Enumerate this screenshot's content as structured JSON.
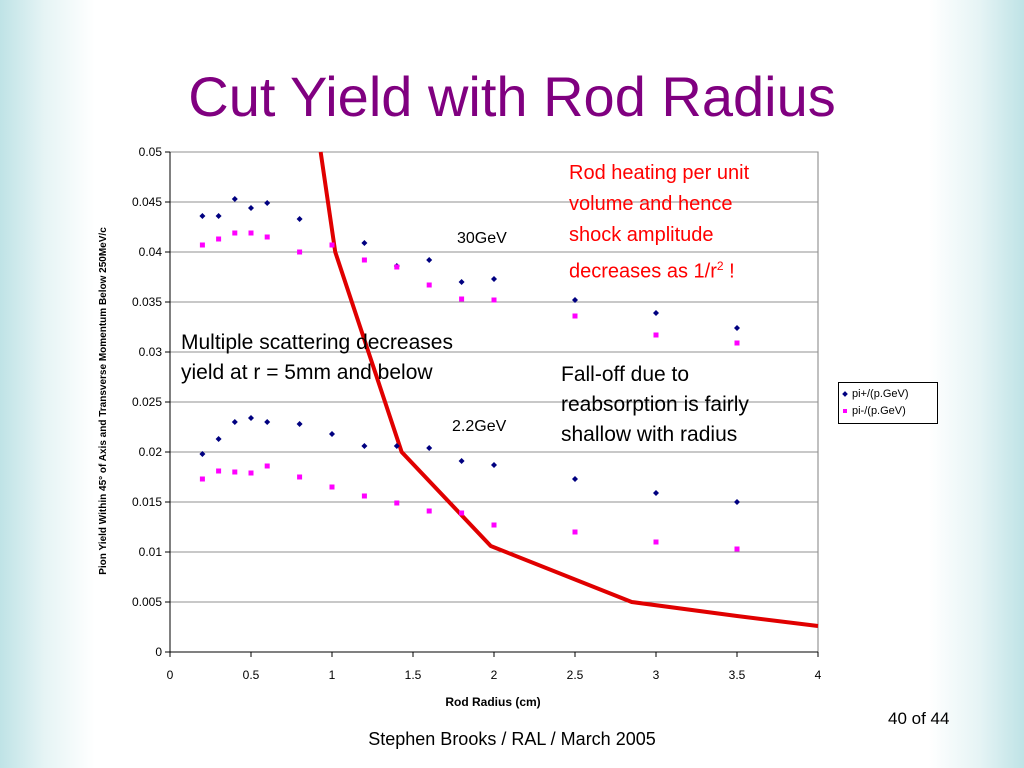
{
  "slide": {
    "title": "Cut Yield with Rod Radius",
    "footer": "Stephen Brooks / RAL / March 2005",
    "page": "40 of 44"
  },
  "annotations": {
    "multiple_scattering": [
      "Multiple scattering decreases",
      "yield at r = 5mm and below"
    ],
    "rod_heating": [
      "Rod heating per unit",
      "volume and hence",
      "shock amplitude",
      "decreases as 1/r"
    ],
    "rod_heating_sup": "2",
    "rod_heating_end": " !",
    "fall_off": [
      "Fall-off due to",
      "reabsorption is fairly",
      "shallow with radius"
    ],
    "label_30gev": "30GeV",
    "label_22gev": "2.2GeV"
  },
  "chart_data": {
    "type": "scatter",
    "xlabel": "Rod Radius (cm)",
    "ylabel": "Pion Yield Within 45° of Axis and Transverse Momentum Below 250MeV/c",
    "xlim": [
      0,
      4
    ],
    "ylim": [
      0,
      0.05
    ],
    "xticks": [
      "0",
      "0.5",
      "1",
      "1.5",
      "2",
      "2.5",
      "3",
      "3.5",
      "4"
    ],
    "yticks": [
      "0",
      "0.005",
      "0.01",
      "0.015",
      "0.02",
      "0.025",
      "0.03",
      "0.035",
      "0.04",
      "0.045",
      "0.05"
    ],
    "legend_position": "right",
    "series": [
      {
        "name": "pi+/(p.GeV)",
        "color": "#000080",
        "marker": "diamond",
        "points": [
          [
            0.2,
            0.0436
          ],
          [
            0.3,
            0.0436
          ],
          [
            0.4,
            0.0453
          ],
          [
            0.5,
            0.0444
          ],
          [
            0.6,
            0.0449
          ],
          [
            0.8,
            0.0433
          ],
          [
            1.2,
            0.0409
          ],
          [
            1.4,
            0.0386
          ],
          [
            1.6,
            0.0392
          ],
          [
            1.8,
            0.037
          ],
          [
            2.0,
            0.0373
          ],
          [
            2.5,
            0.0352
          ],
          [
            3.0,
            0.0339
          ],
          [
            3.5,
            0.0324
          ],
          [
            0.2,
            0.0198
          ],
          [
            0.3,
            0.0213
          ],
          [
            0.4,
            0.023
          ],
          [
            0.5,
            0.0234
          ],
          [
            0.6,
            0.023
          ],
          [
            0.8,
            0.0228
          ],
          [
            1.0,
            0.0218
          ],
          [
            1.2,
            0.0206
          ],
          [
            1.4,
            0.0206
          ],
          [
            1.6,
            0.0204
          ],
          [
            1.8,
            0.0191
          ],
          [
            2.0,
            0.0187
          ],
          [
            2.5,
            0.0173
          ],
          [
            3.0,
            0.0159
          ],
          [
            3.5,
            0.015
          ]
        ]
      },
      {
        "name": "pi-/(p.GeV)",
        "color": "#ff00ff",
        "marker": "square",
        "points": [
          [
            0.2,
            0.0407
          ],
          [
            0.3,
            0.0413
          ],
          [
            0.4,
            0.0419
          ],
          [
            0.5,
            0.0419
          ],
          [
            0.6,
            0.0415
          ],
          [
            0.8,
            0.04
          ],
          [
            1.0,
            0.0407
          ],
          [
            1.2,
            0.0392
          ],
          [
            1.4,
            0.0385
          ],
          [
            1.6,
            0.0367
          ],
          [
            1.8,
            0.0353
          ],
          [
            2.0,
            0.0352
          ],
          [
            2.5,
            0.0336
          ],
          [
            3.0,
            0.0317
          ],
          [
            3.5,
            0.0309
          ],
          [
            0.2,
            0.0173
          ],
          [
            0.3,
            0.0181
          ],
          [
            0.4,
            0.018
          ],
          [
            0.5,
            0.0179
          ],
          [
            0.6,
            0.0186
          ],
          [
            0.8,
            0.0175
          ],
          [
            1.0,
            0.0165
          ],
          [
            1.2,
            0.0156
          ],
          [
            1.4,
            0.0149
          ],
          [
            1.6,
            0.0141
          ],
          [
            1.8,
            0.0139
          ],
          [
            2.0,
            0.0127
          ],
          [
            2.5,
            0.012
          ],
          [
            3.0,
            0.011
          ],
          [
            3.5,
            0.0103
          ]
        ]
      }
    ],
    "curve": {
      "color": "#e00000",
      "points": [
        [
          0.93,
          0.05
        ],
        [
          1.02,
          0.04
        ],
        [
          1.43,
          0.02
        ],
        [
          1.98,
          0.0106
        ],
        [
          2.85,
          0.005
        ],
        [
          3.5,
          0.0036
        ],
        [
          4.0,
          0.0026
        ]
      ]
    }
  }
}
